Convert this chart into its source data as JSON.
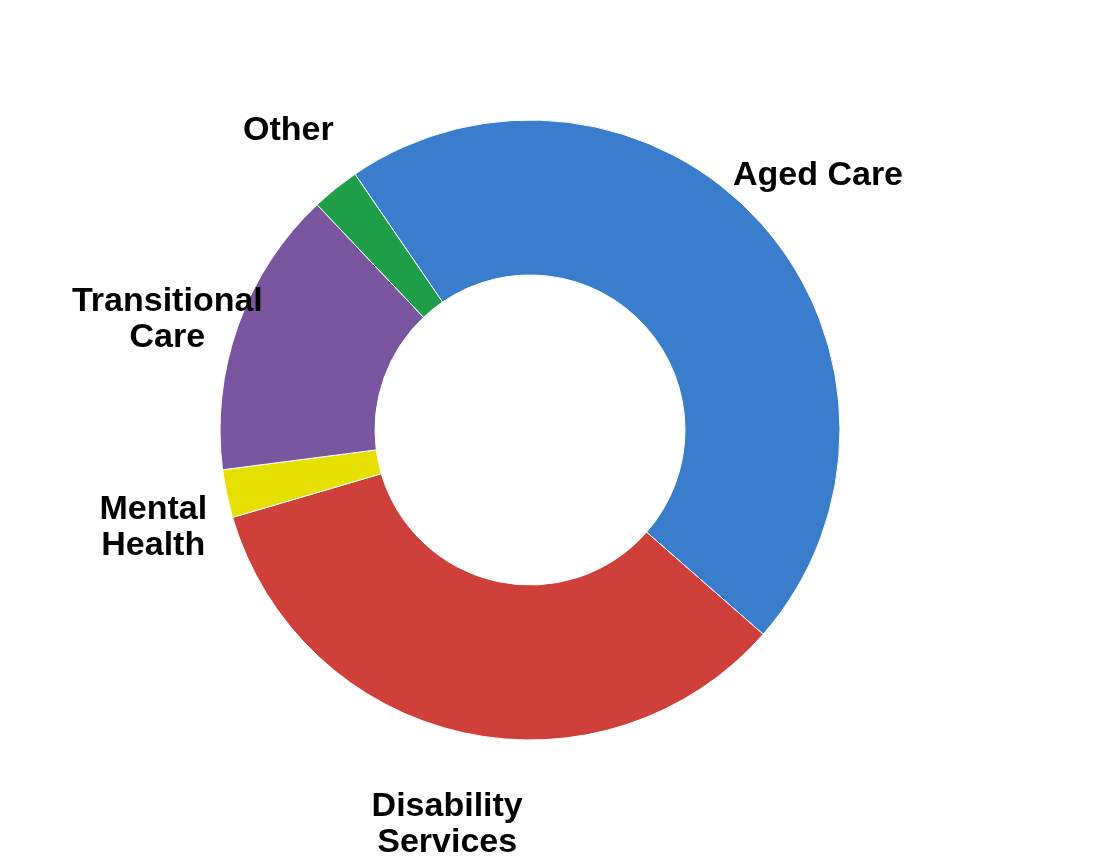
{
  "chart_data": {
    "type": "donut",
    "categories": [
      "Aged Care",
      "Disability Services",
      "Mental Health",
      "Transitional Care",
      "Other"
    ],
    "values": [
      46,
      34,
      2.5,
      15,
      2.5
    ],
    "colors": [
      "#3a7dcc",
      "#cf403b",
      "#e6e000",
      "#7a55a0",
      "#1e9e48"
    ]
  }
}
